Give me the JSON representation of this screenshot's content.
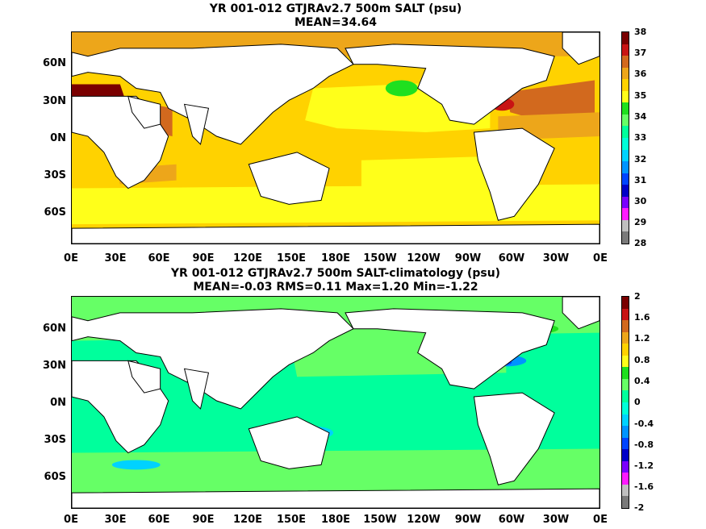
{
  "panels": [
    {
      "title_line1": "YR 001-012 GTJRAv2.7 500m SALT (psu)",
      "title_line2": "MEAN=34.64",
      "lat_labels": [
        "60N",
        "30N",
        "0N",
        "30S",
        "60S"
      ],
      "lon_labels": [
        "0E",
        "30E",
        "60E",
        "90E",
        "120E",
        "150E",
        "180E",
        "150W",
        "120W",
        "90W",
        "60W",
        "30W",
        "0E"
      ],
      "colorbar": {
        "labels": [
          "38",
          "37",
          "36",
          "35",
          "34",
          "33",
          "32",
          "31",
          "30",
          "29",
          "28"
        ],
        "colors": [
          "#7a0000",
          "#c81414",
          "#d2691e",
          "#eda61a",
          "#ffd200",
          "#ffff1a",
          "#1fe01f",
          "#66ff66",
          "#00ff9c",
          "#00ffd8",
          "#00d2ff",
          "#0094ff",
          "#0044ff",
          "#0000c8",
          "#7a00ff",
          "#ff1aff",
          "#bfbfbf",
          "#7a7a7a"
        ]
      },
      "ocean_base": "#ffd200",
      "land_color": "#ffffff"
    },
    {
      "title_line1": "YR 001-012 GTJRAv2.7 500m SALT-climatology (psu)",
      "title_line2": "MEAN=-0.03   RMS=0.11   Max=1.20   Min=-1.22",
      "lat_labels": [
        "60N",
        "30N",
        "0N",
        "30S",
        "60S"
      ],
      "lon_labels": [
        "0E",
        "30E",
        "60E",
        "90E",
        "120E",
        "150E",
        "180E",
        "150W",
        "120W",
        "90W",
        "60W",
        "30W",
        "0E"
      ],
      "colorbar": {
        "labels": [
          "2",
          "1.6",
          "1.2",
          "0.8",
          "0.4",
          "0",
          "-0.4",
          "-0.8",
          "-1.2",
          "-1.6",
          "-2"
        ],
        "colors": [
          "#7a0000",
          "#c81414",
          "#d2691e",
          "#eda61a",
          "#ffd200",
          "#ffff1a",
          "#1fe01f",
          "#66ff66",
          "#00ff9c",
          "#00ffd8",
          "#00d2ff",
          "#0094ff",
          "#0044ff",
          "#0000c8",
          "#7a00ff",
          "#ff1aff",
          "#bfbfbf",
          "#7a7a7a"
        ]
      },
      "ocean_base": "#00ff9c",
      "land_color": "#ffffff"
    }
  ]
}
